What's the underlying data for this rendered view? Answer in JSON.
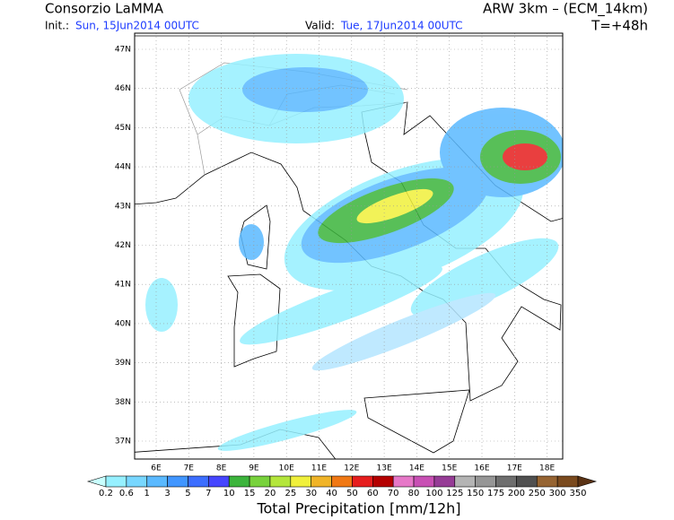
{
  "header": {
    "title": "Consorzio LaMMA",
    "model": "ARW 3km – (ECM_14km)",
    "init_label": "Init.:",
    "init": "Sun, 15Jun2014 00UTC",
    "valid_label": "Valid:",
    "valid": "Tue, 17Jun2014 00UTC",
    "lead": "T=+48h"
  },
  "map": {
    "lat_labels": [
      "47N",
      "46N",
      "45N",
      "44N",
      "43N",
      "42N",
      "41N",
      "40N",
      "39N",
      "38N",
      "37N"
    ],
    "lon_labels": [
      "6E",
      "7E",
      "8E",
      "9E",
      "10E",
      "11E",
      "12E",
      "13E",
      "14E",
      "15E",
      "16E",
      "17E",
      "18E"
    ]
  },
  "colorbar": {
    "levels": [
      "0.2",
      "0.6",
      "1",
      "3",
      "5",
      "7",
      "10",
      "15",
      "20",
      "25",
      "30",
      "40",
      "50",
      "60",
      "70",
      "80",
      "100",
      "125",
      "150",
      "175",
      "200",
      "250",
      "300",
      "350"
    ],
    "colors": [
      "#c8ffff",
      "#96f0ff",
      "#78d7ff",
      "#5ab9ff",
      "#4196ff",
      "#3c6eff",
      "#4646ff",
      "#3cb43c",
      "#78d23c",
      "#b4e63c",
      "#f0f03c",
      "#f0b428",
      "#f07814",
      "#e61e1e",
      "#b40000",
      "#e678c8",
      "#c850b4",
      "#963c96",
      "#b4b4b4",
      "#969696",
      "#6e6e6e",
      "#505050",
      "#966432",
      "#7a4a1e",
      "#5a3214"
    ],
    "title": "Total Precipitation [mm/12h]"
  }
}
